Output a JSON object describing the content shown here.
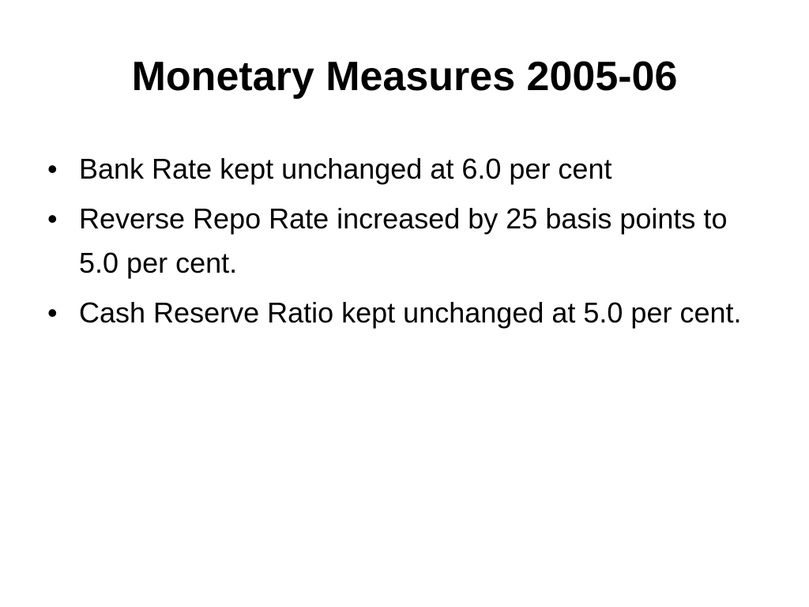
{
  "slide": {
    "title": "Monetary Measures 2005-06",
    "bullets": [
      "Bank Rate kept unchanged at 6.0 per cent",
      "Reverse Repo Rate increased by 25 basis points to 5.0 per cent.",
      "Cash Reserve Ratio kept unchanged at 5.0 per cent."
    ]
  }
}
